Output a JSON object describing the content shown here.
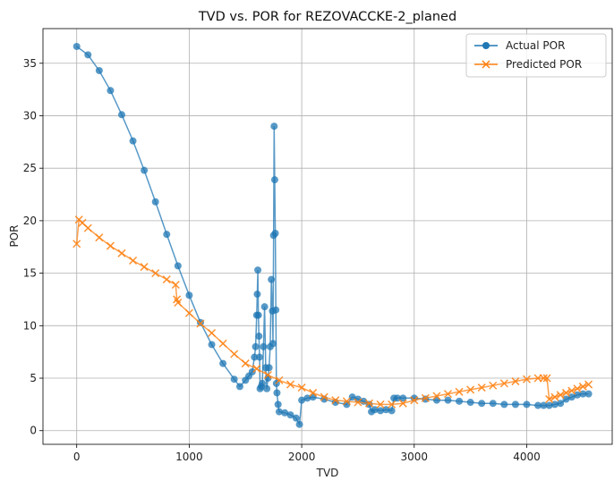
{
  "chart_data": {
    "type": "line",
    "title": "TVD vs. POR for REZOVACCKE-2_planed",
    "xlabel": "TVD",
    "ylabel": "POR",
    "xlim": [
      -300,
      4760
    ],
    "ylim": [
      -1.3,
      38.3
    ],
    "xticks": [
      0,
      1000,
      2000,
      3000,
      4000
    ],
    "yticks": [
      0,
      5,
      10,
      15,
      20,
      25,
      30,
      35
    ],
    "grid": true,
    "legend_position": "top-right",
    "series": [
      {
        "name": "Actual POR",
        "color": "#1f77b4",
        "marker": "circle",
        "x": [
          0,
          100,
          200,
          300,
          400,
          500,
          600,
          700,
          800,
          900,
          1000,
          1100,
          1200,
          1300,
          1400,
          1450,
          1500,
          1530,
          1560,
          1580,
          1590,
          1600,
          1605,
          1610,
          1615,
          1620,
          1625,
          1630,
          1640,
          1650,
          1660,
          1670,
          1680,
          1690,
          1700,
          1710,
          1720,
          1730,
          1740,
          1745,
          1750,
          1755,
          1760,
          1765,
          1770,
          1775,
          1780,
          1790,
          1800,
          1850,
          1900,
          1950,
          1980,
          2000,
          2050,
          2100,
          2200,
          2300,
          2400,
          2450,
          2500,
          2550,
          2600,
          2620,
          2650,
          2700,
          2750,
          2800,
          2820,
          2850,
          2900,
          3000,
          3100,
          3200,
          3300,
          3400,
          3500,
          3600,
          3700,
          3800,
          3900,
          4000,
          4100,
          4150,
          4200,
          4250,
          4300,
          4350,
          4400,
          4450,
          4500,
          4550
        ],
        "y": [
          36.6,
          35.8,
          34.3,
          32.4,
          30.1,
          27.6,
          24.8,
          21.8,
          18.7,
          15.7,
          12.9,
          10.3,
          8.2,
          6.4,
          4.9,
          4.2,
          4.8,
          5.2,
          5.6,
          7.0,
          8.0,
          11.0,
          13.0,
          15.3,
          11.0,
          9.0,
          7.0,
          4.0,
          4.2,
          4.5,
          8.0,
          11.8,
          6.0,
          4.0,
          5.0,
          6.0,
          8.0,
          14.4,
          11.4,
          8.3,
          18.6,
          29.0,
          23.9,
          18.8,
          11.5,
          4.5,
          3.6,
          2.5,
          1.8,
          1.7,
          1.5,
          1.2,
          0.6,
          2.9,
          3.1,
          3.2,
          3.0,
          2.7,
          2.5,
          3.2,
          3.0,
          2.8,
          2.5,
          1.8,
          2.0,
          1.9,
          2.0,
          1.9,
          3.1,
          3.1,
          3.1,
          3.1,
          3.0,
          2.9,
          2.9,
          2.8,
          2.7,
          2.6,
          2.6,
          2.5,
          2.5,
          2.5,
          2.4,
          2.4,
          2.4,
          2.5,
          2.6,
          3.0,
          3.2,
          3.4,
          3.5,
          3.5
        ]
      },
      {
        "name": "Predicted POR",
        "color": "#ff7f0e",
        "marker": "x",
        "x": [
          0,
          20,
          50,
          100,
          200,
          300,
          400,
          500,
          600,
          700,
          800,
          880,
          890,
          900,
          1000,
          1100,
          1200,
          1300,
          1400,
          1500,
          1600,
          1700,
          1800,
          1900,
          2000,
          2100,
          2200,
          2300,
          2400,
          2500,
          2600,
          2700,
          2800,
          2900,
          3000,
          3100,
          3200,
          3300,
          3400,
          3500,
          3600,
          3700,
          3800,
          3900,
          4000,
          4100,
          4150,
          4180,
          4200,
          4250,
          4300,
          4350,
          4400,
          4450,
          4500,
          4550
        ],
        "y": [
          17.8,
          20.1,
          19.8,
          19.3,
          18.4,
          17.6,
          16.9,
          16.2,
          15.6,
          15.0,
          14.4,
          13.9,
          12.5,
          12.2,
          11.2,
          10.2,
          9.3,
          8.3,
          7.3,
          6.4,
          5.9,
          5.3,
          4.8,
          4.4,
          4.1,
          3.6,
          3.2,
          2.9,
          2.8,
          2.7,
          2.6,
          2.5,
          2.5,
          2.6,
          2.9,
          3.1,
          3.3,
          3.5,
          3.7,
          3.9,
          4.1,
          4.3,
          4.5,
          4.7,
          4.9,
          5.0,
          5.0,
          5.0,
          3.0,
          3.2,
          3.4,
          3.6,
          3.8,
          4.0,
          4.2,
          4.4
        ]
      }
    ]
  }
}
